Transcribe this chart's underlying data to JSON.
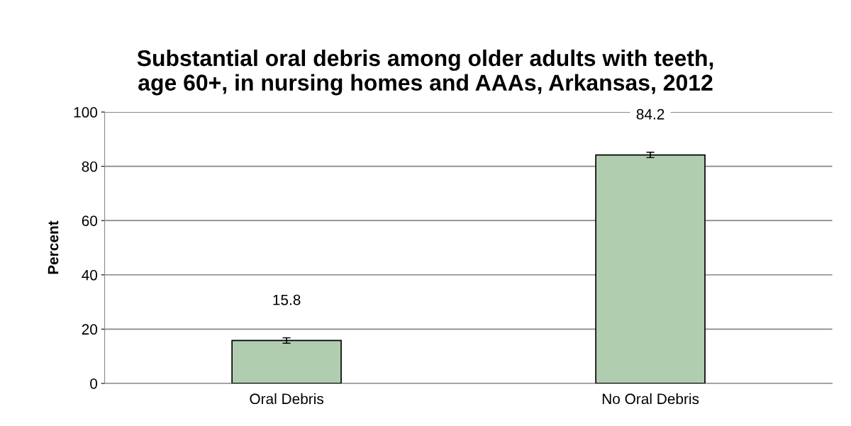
{
  "chart_data": {
    "type": "bar",
    "title": "Substantial oral debris among older adults with teeth,\nage 60+, in nursing homes and AAAs, Arkansas, 2012",
    "ylabel": "Percent",
    "categories": [
      "Oral Debris",
      "No Oral Debris"
    ],
    "values": [
      15.8,
      84.2
    ],
    "errors": [
      1,
      1
    ],
    "color": "#b0cdb0",
    "ylim": [
      0,
      100
    ],
    "yticks": [
      0,
      20,
      40,
      60,
      80,
      100
    ],
    "grid": "y",
    "data_labels": true
  }
}
